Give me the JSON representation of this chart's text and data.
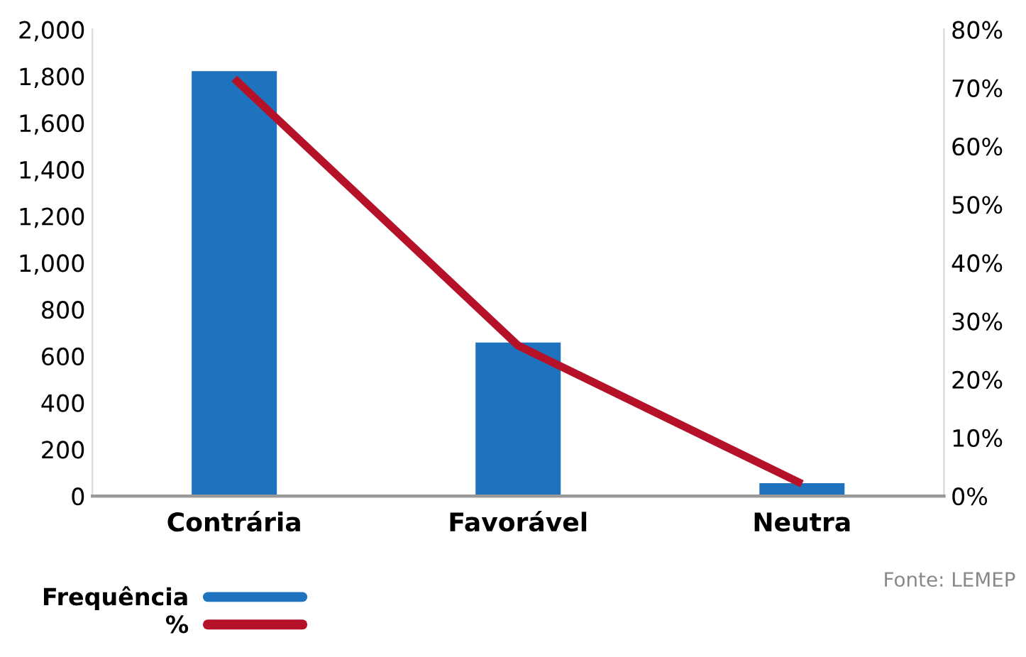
{
  "chart_data": {
    "type": "bar",
    "categories": [
      "Contrária",
      "Favorável",
      "Neutra"
    ],
    "series": [
      {
        "name": "Frequência",
        "color": "#1f72bd",
        "values": [
          1822,
          658,
          55
        ]
      },
      {
        "name": "%",
        "type": "line",
        "axis": "y2",
        "color": "#b5122a",
        "values": [
          71.6,
          25.8,
          2.1
        ]
      }
    ],
    "ylim": [
      0,
      2000
    ],
    "yticks": [
      0,
      200,
      400,
      600,
      800,
      {
        "value": 1000,
        "label": "1,000"
      },
      {
        "value": 1200,
        "label": "1,200"
      },
      {
        "value": 1400,
        "label": "1,400"
      },
      {
        "value": 1600,
        "label": "1,600"
      },
      {
        "value": 1800,
        "label": "1,800"
      },
      {
        "value": 2000,
        "label": "2,000"
      }
    ],
    "y2lim": [
      0,
      80
    ],
    "y2ticks": [
      {
        "value": 0,
        "label": "0%"
      },
      {
        "value": 10,
        "label": "10%"
      },
      {
        "value": 20,
        "label": "20%"
      },
      {
        "value": 30,
        "label": "30%"
      },
      {
        "value": 40,
        "label": "40%"
      },
      {
        "value": 50,
        "label": "50%"
      },
      {
        "value": 60,
        "label": "60%"
      },
      {
        "value": 70,
        "label": "70%"
      },
      {
        "value": 80,
        "label": "80%"
      }
    ],
    "grid": false,
    "legend": "bottom left",
    "marker": "none",
    "line_style": "solid",
    "annotations": [
      "Fonte: LEMEP"
    ]
  }
}
